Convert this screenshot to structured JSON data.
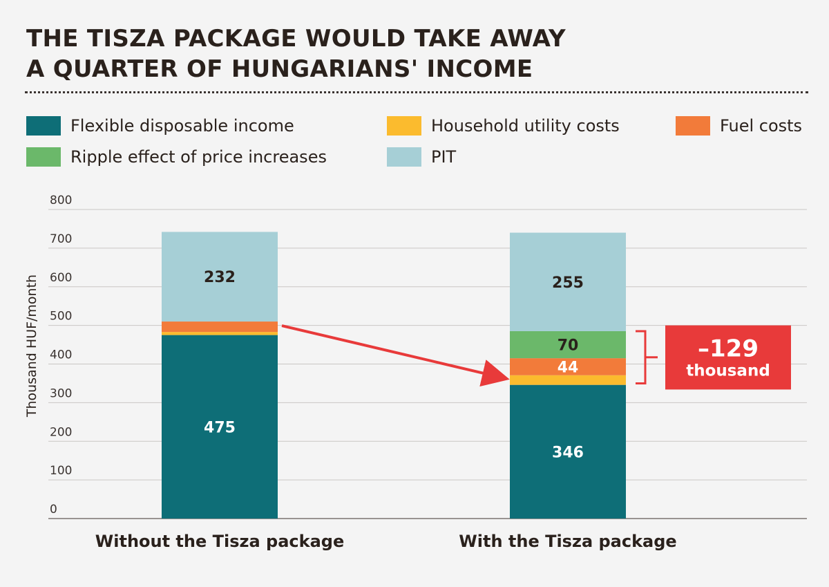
{
  "title": {
    "line1": "THE TISZA PACKAGE WOULD TAKE AWAY",
    "line2": "A QUARTER OF HUNGARIANS' INCOME"
  },
  "legend": [
    {
      "label": "Flexible disposable income",
      "color": "#0e6e77"
    },
    {
      "label": "Household utility costs",
      "color": "#fbbb2e"
    },
    {
      "label": "Fuel costs",
      "color": "#f27b3a"
    },
    {
      "label": "Ripple effect of price increases",
      "color": "#6bb86a"
    },
    {
      "label": "PIT",
      "color": "#a6cfd6"
    }
  ],
  "chart_data": {
    "type": "bar",
    "stacked": true,
    "categories": [
      "Without the Tisza package",
      "With the Tisza package"
    ],
    "ylabel": "Thousand HUF/month",
    "xlabel": "",
    "ylim": [
      0,
      800
    ],
    "yticks": [
      0,
      100,
      200,
      300,
      400,
      500,
      600,
      700,
      800
    ],
    "grid": true,
    "legend_position": "top",
    "series": [
      {
        "name": "Flexible disposable income",
        "values": [
          475,
          346
        ],
        "labels": [
          "475",
          "346"
        ],
        "color": "#0e6e77",
        "label_color": "#ffffff"
      },
      {
        "name": "Household utility costs",
        "values": [
          8,
          25
        ],
        "labels": [
          "",
          ""
        ],
        "color": "#fbbb2e",
        "label_color": "#2a211c"
      },
      {
        "name": "Fuel costs",
        "values": [
          27,
          44
        ],
        "labels": [
          "",
          "44"
        ],
        "color": "#f27b3a",
        "label_color": "#ffffff"
      },
      {
        "name": "Ripple effect of price increases",
        "values": [
          0,
          70
        ],
        "labels": [
          "",
          "70"
        ],
        "color": "#6bb86a",
        "label_color": "#2a211c"
      },
      {
        "name": "PIT",
        "values": [
          232,
          255
        ],
        "labels": [
          "232",
          "255"
        ],
        "color": "#a6cfd6",
        "label_color": "#2a211c"
      }
    ],
    "annotation": {
      "value": "–129",
      "unit": "thousand",
      "range": [
        346,
        485
      ],
      "box_color": "#e83a3a",
      "arrow_color": "#e83a3a"
    }
  }
}
